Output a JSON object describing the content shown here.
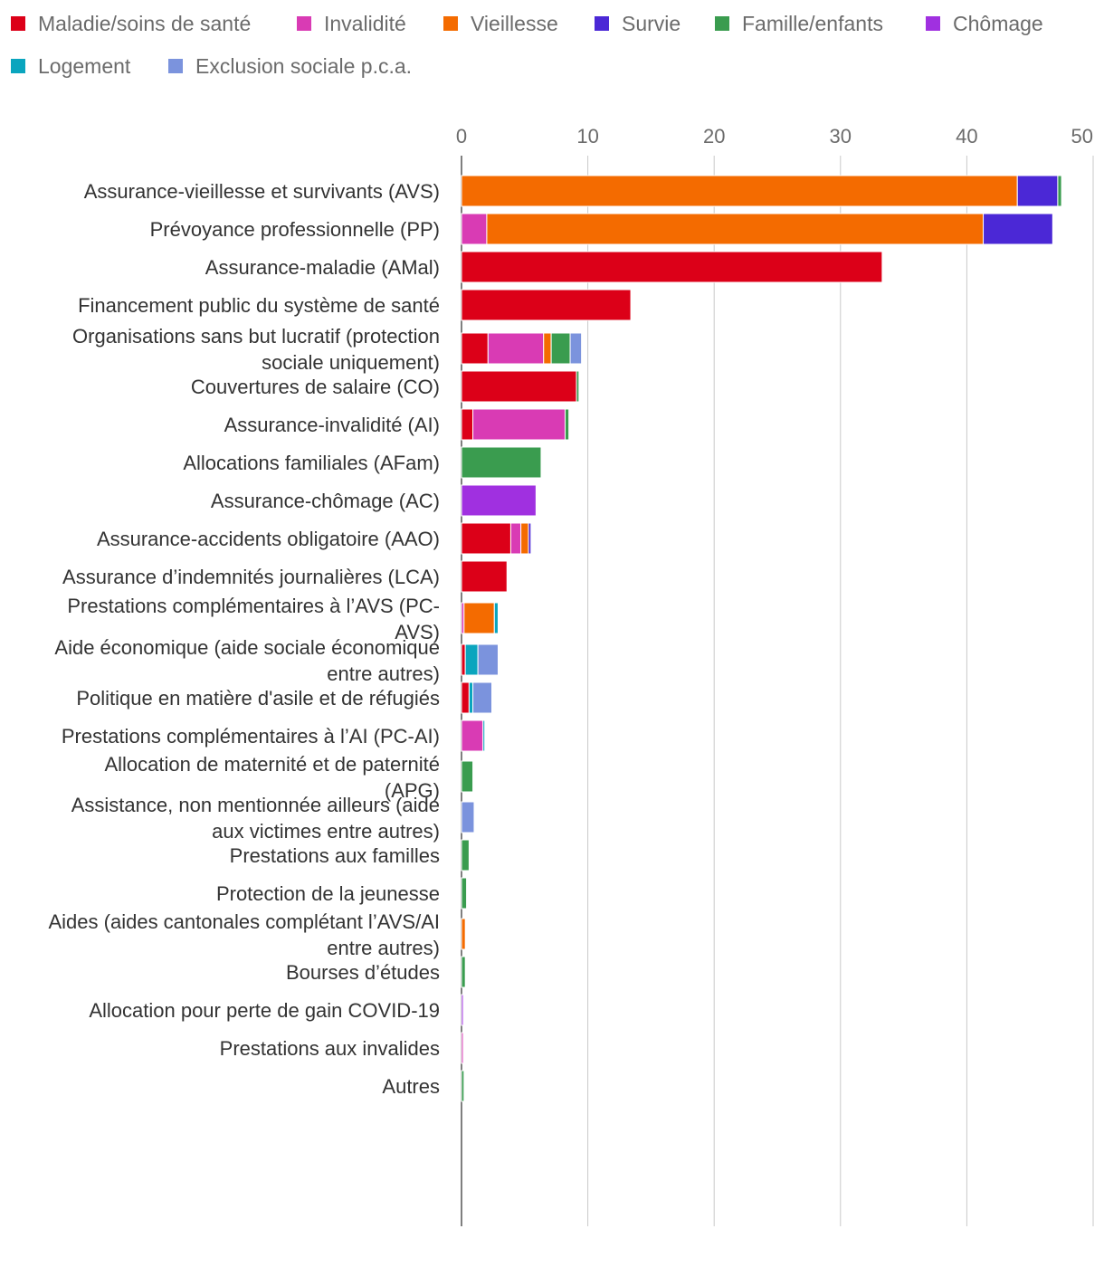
{
  "chart_data": {
    "type": "bar",
    "orientation": "horizontal",
    "stacked": true,
    "title": "",
    "xlabel": "",
    "ylabel": "",
    "xlim": [
      0,
      50
    ],
    "xticks": [
      0,
      10,
      20,
      30,
      40,
      50
    ],
    "legend_position": "top",
    "grid": true,
    "categories": [
      "Assurance-vieillesse et survivants (AVS)",
      "Prévoyance professionnelle (PP)",
      "Assurance-maladie (AMal)",
      "Financement public du système de santé",
      "Organisations sans but lucratif (protection sociale uniquement)",
      "Couvertures de salaire (CO)",
      "Assurance-invalidité (AI)",
      "Allocations familiales (AFam)",
      "Assurance-chômage (AC)",
      "Assurance-accidents obligatoire (AAO)",
      "Assurance d’indemnités journalières (LCA)",
      "Prestations complémentaires à l’AVS (PC-AVS)",
      "Aide économique (aide sociale économique entre autres)",
      "Politique en matière d'asile et de réfugiés",
      "Prestations complémentaires à l’AI (PC-AI)",
      "Allocation de maternité et de paternité (APG)",
      "Assistance, non mentionnée ailleurs (aide aux victimes entre autres)",
      "Prestations aux familles",
      "Protection de la jeunesse",
      "Aides (aides cantonales complétant l’AVS/AI entre autres)",
      "Bourses d’études",
      "Allocation pour perte de gain COVID-19",
      "Prestations aux invalides",
      "Autres"
    ],
    "category_lines": [
      [
        "Assurance-vieillesse et survivants (AVS)"
      ],
      [
        "Prévoyance professionnelle (PP)"
      ],
      [
        "Assurance-maladie (AMal)"
      ],
      [
        "Financement public du système de santé"
      ],
      [
        "Organisations sans but lucratif (protection",
        "sociale uniquement)"
      ],
      [
        "Couvertures de salaire (CO)"
      ],
      [
        "Assurance-invalidité (AI)"
      ],
      [
        "Allocations familiales (AFam)"
      ],
      [
        "Assurance-chômage (AC)"
      ],
      [
        "Assurance-accidents obligatoire (AAO)"
      ],
      [
        "Assurance d’indemnités journalières (LCA)"
      ],
      [
        "Prestations complémentaires à l’AVS (PC-",
        "AVS)"
      ],
      [
        "Aide économique (aide sociale économique",
        "entre autres)"
      ],
      [
        "Politique en matière d'asile et de réfugiés"
      ],
      [
        "Prestations complémentaires à l’AI (PC-AI)"
      ],
      [
        "Allocation de maternité et de paternité",
        "(APG)"
      ],
      [
        "Assistance, non mentionnée ailleurs (aide",
        "aux victimes entre autres)"
      ],
      [
        "Prestations aux familles"
      ],
      [
        "Protection de la jeunesse"
      ],
      [
        "Aides (aides cantonales complétant l’AVS/AI",
        "entre autres)"
      ],
      [
        "Bourses d’études"
      ],
      [
        "Allocation pour perte de gain COVID-19"
      ],
      [
        "Prestations aux invalides"
      ],
      [
        "Autres"
      ]
    ],
    "series": [
      {
        "name": "Maladie/soins de santé",
        "color": "#dc0018",
        "values": [
          0,
          0,
          33.3,
          13.4,
          2.1,
          9.1,
          0.9,
          0,
          0,
          3.9,
          3.6,
          0,
          0.3,
          0.6,
          0,
          0,
          0,
          0,
          0,
          0,
          0,
          0,
          0,
          0
        ]
      },
      {
        "name": "Invalidité",
        "color": "#d93bb4",
        "values": [
          0,
          2.0,
          0,
          0,
          4.4,
          0,
          7.3,
          0,
          0,
          0.8,
          0,
          0.2,
          0,
          0,
          1.7,
          0,
          0,
          0,
          0,
          0,
          0,
          0,
          0.1,
          0
        ]
      },
      {
        "name": "Vieillesse",
        "color": "#f46b00",
        "values": [
          44.0,
          39.3,
          0,
          0,
          0.6,
          0,
          0,
          0,
          0,
          0.6,
          0,
          2.4,
          0,
          0,
          0,
          0,
          0,
          0,
          0,
          0.3,
          0,
          0,
          0,
          0
        ]
      },
      {
        "name": "Survie",
        "color": "#4b28d6",
        "values": [
          3.2,
          5.5,
          0,
          0,
          0,
          0,
          0,
          0,
          0,
          0.2,
          0,
          0,
          0,
          0,
          0,
          0,
          0,
          0,
          0,
          0,
          0,
          0,
          0,
          0
        ]
      },
      {
        "name": "Famille/enfants",
        "color": "#3a9c4f",
        "values": [
          0.3,
          0,
          0,
          0,
          1.5,
          0.2,
          0.3,
          6.3,
          0,
          0,
          0,
          0,
          0,
          0,
          0,
          0.9,
          0,
          0.6,
          0.4,
          0,
          0.3,
          0,
          0,
          0.2
        ]
      },
      {
        "name": "Chômage",
        "color": "#a030e0",
        "values": [
          0,
          0,
          0,
          0,
          0,
          0,
          0,
          0,
          5.9,
          0,
          0,
          0,
          0,
          0,
          0,
          0,
          0,
          0,
          0,
          0,
          0,
          0.1,
          0,
          0
        ]
      },
      {
        "name": "Logement",
        "color": "#0aa5be",
        "values": [
          0,
          0,
          0,
          0,
          0,
          0,
          0,
          0,
          0,
          0,
          0,
          0.3,
          1.0,
          0.3,
          0.1,
          0,
          0,
          0,
          0,
          0,
          0,
          0,
          0,
          0
        ]
      },
      {
        "name": "Exclusion sociale p.c.a.",
        "color": "#7b93dd",
        "values": [
          0,
          0,
          0,
          0,
          0.9,
          0,
          0,
          0,
          0,
          0,
          0,
          0,
          1.6,
          1.5,
          0,
          0,
          1.0,
          0,
          0,
          0,
          0,
          0,
          0,
          0
        ]
      }
    ]
  }
}
